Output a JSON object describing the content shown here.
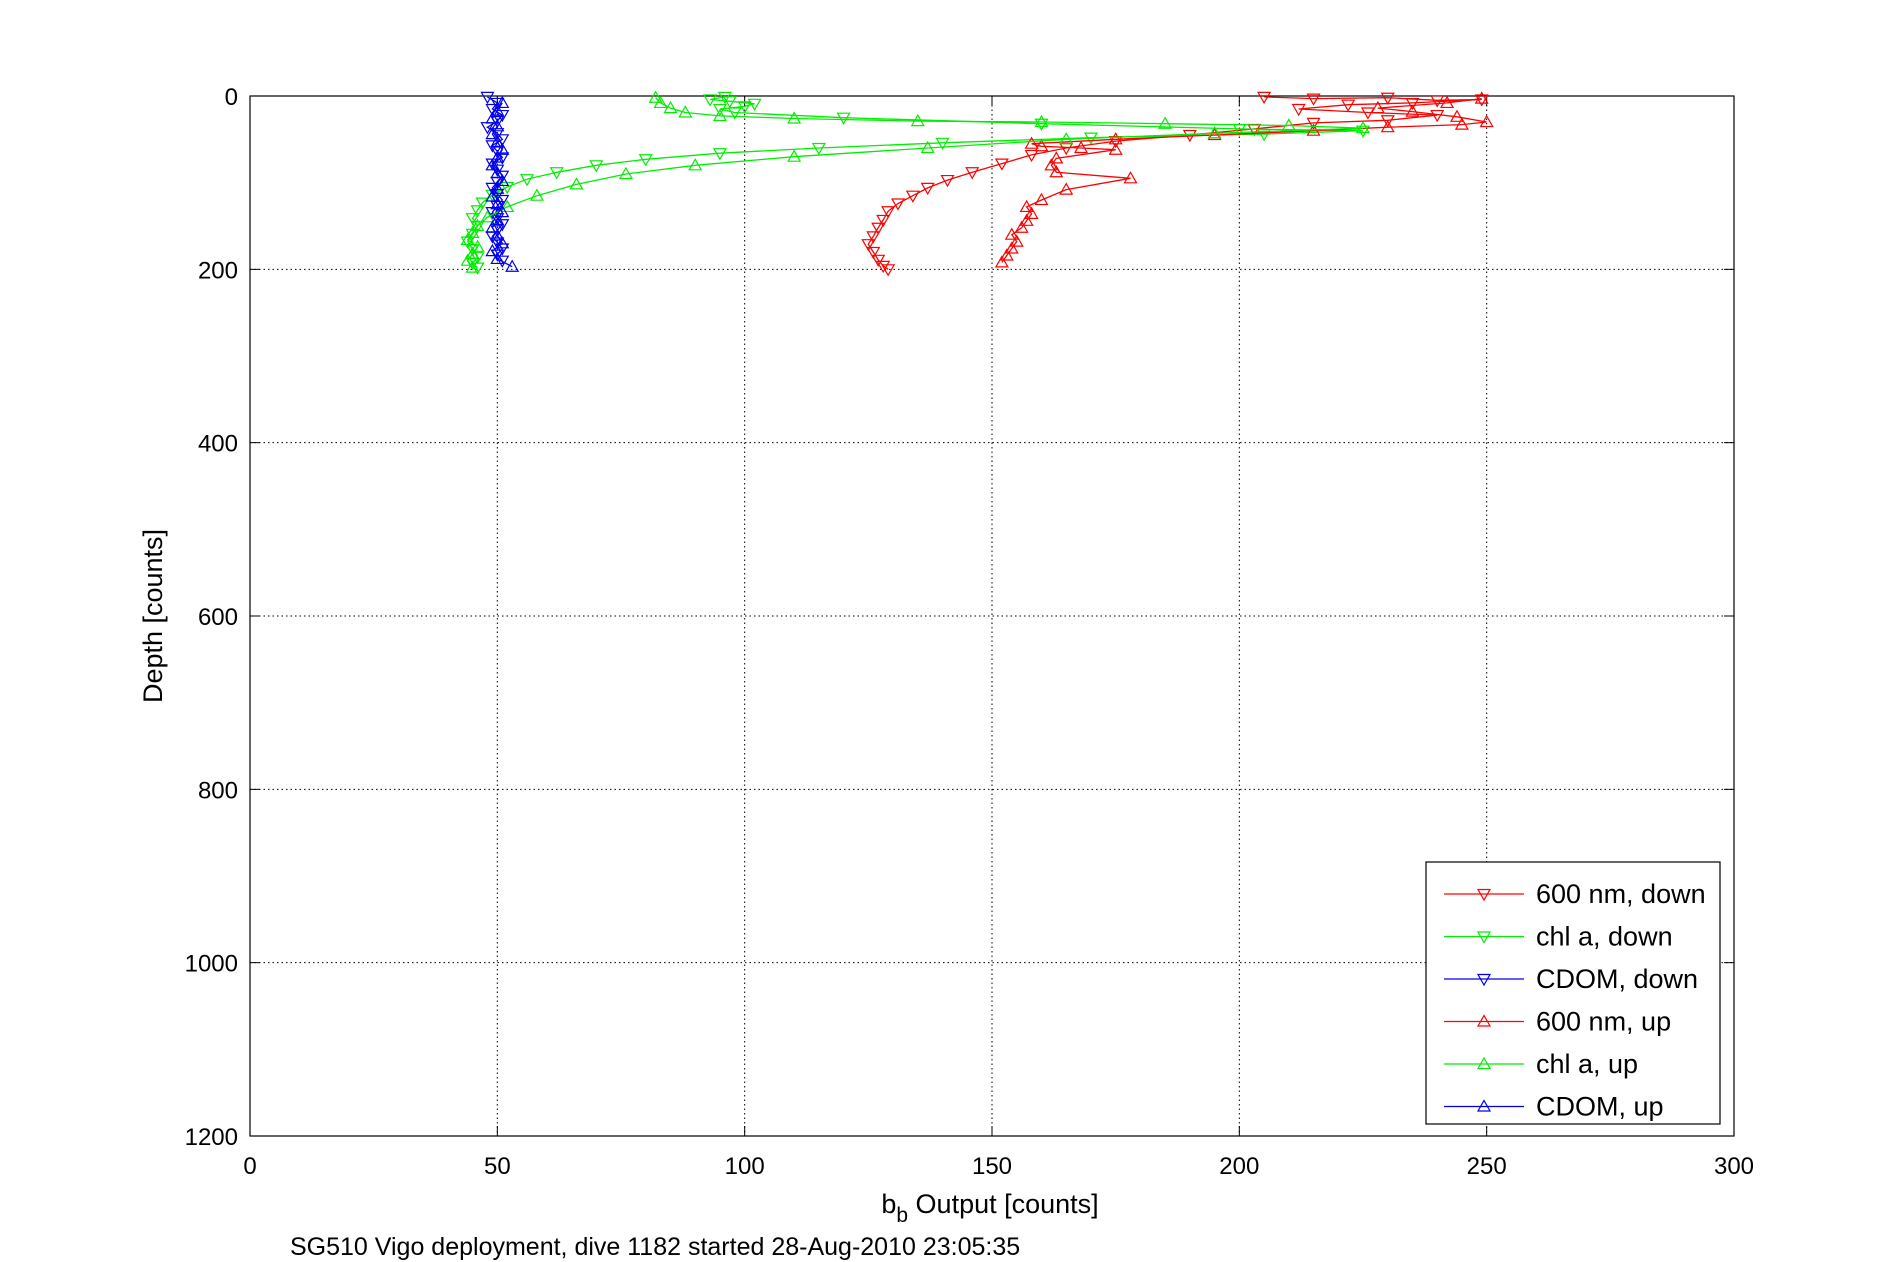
{
  "caption": "SG510 Vigo deployment, dive 1182 started 28-Aug-2010 23:05:35",
  "chart_data": {
    "type": "line",
    "xlabel_main": "b",
    "xlabel_sub": "b",
    "xlabel_rest": " Output [counts]",
    "ylabel": "Depth [counts]",
    "xlim": [
      0,
      300
    ],
    "ylim": [
      0,
      1200
    ],
    "y_reversed": true,
    "grid": true,
    "legend_position": "bottom-right",
    "x_ticks": [
      "0",
      "50",
      "100",
      "150",
      "200",
      "250",
      "300"
    ],
    "x_tick_values": [
      0,
      50,
      100,
      150,
      200,
      250,
      300
    ],
    "y_ticks": [
      "0",
      "200",
      "400",
      "600",
      "800",
      "1000",
      "1200"
    ],
    "y_tick_values": [
      0,
      200,
      400,
      600,
      800,
      1000,
      1200
    ],
    "series": [
      {
        "name": "600 nm, down",
        "color": "#ff0000",
        "marker": "triangle-down",
        "x": [
          205,
          215,
          230,
          240,
          249,
          235,
          222,
          212,
          226,
          240,
          230,
          215,
          203,
          190,
          175,
          165,
          158,
          152,
          146,
          141,
          137,
          134,
          131,
          129,
          128,
          127,
          126,
          125,
          126,
          127,
          128,
          129
        ],
        "y": [
          1,
          3,
          2,
          5,
          4,
          8,
          10,
          15,
          19,
          22,
          28,
          31,
          38,
          45,
          52,
          60,
          68,
          78,
          88,
          97,
          106,
          115,
          124,
          133,
          143,
          152,
          162,
          171,
          180,
          189,
          196,
          200
        ]
      },
      {
        "name": "chl a, down",
        "color": "#00ee00",
        "marker": "triangle-down",
        "x": [
          96,
          93,
          97,
          102,
          100,
          95,
          98,
          120,
          160,
          200,
          225,
          205,
          170,
          140,
          115,
          95,
          80,
          70,
          62,
          56,
          52,
          49,
          47,
          46,
          45,
          46,
          45,
          44,
          45,
          46,
          45,
          46
        ],
        "y": [
          1,
          4,
          6,
          9,
          12,
          15,
          19,
          25,
          32,
          38,
          40,
          44,
          48,
          54,
          60,
          66,
          73,
          80,
          88,
          96,
          105,
          114,
          123,
          132,
          141,
          150,
          159,
          168,
          177,
          186,
          193,
          198
        ]
      },
      {
        "name": "CDOM, down",
        "color": "#0000ee",
        "marker": "triangle-down",
        "x": [
          48,
          50,
          49,
          51,
          50,
          48,
          50,
          51,
          49,
          50,
          51,
          49,
          50,
          51,
          50,
          49,
          50,
          51,
          50,
          49,
          50,
          51,
          50,
          49,
          50,
          51,
          50,
          51
        ],
        "y": [
          1,
          8,
          15,
          22,
          29,
          36,
          43,
          50,
          57,
          64,
          71,
          78,
          85,
          92,
          99,
          106,
          113,
          120,
          127,
          134,
          141,
          148,
          155,
          162,
          169,
          176,
          183,
          190
        ]
      },
      {
        "name": "600 nm, up",
        "color": "#ff0000",
        "marker": "triangle-up",
        "x": [
          152,
          153,
          154,
          155,
          154,
          156,
          157,
          158,
          157,
          160,
          165,
          178,
          163,
          162,
          163,
          175,
          168,
          160,
          158,
          175,
          195,
          215,
          230,
          245,
          250,
          244,
          235,
          228,
          242,
          249
        ],
        "y": [
          192,
          184,
          176,
          168,
          160,
          152,
          144,
          136,
          128,
          120,
          108,
          95,
          88,
          80,
          72,
          62,
          60,
          58,
          55,
          50,
          45,
          40,
          36,
          33,
          30,
          24,
          18,
          14,
          8,
          3
        ]
      },
      {
        "name": "chl a, up",
        "color": "#00ee00",
        "marker": "triangle-up",
        "x": [
          45,
          44,
          45,
          46,
          44,
          45,
          46,
          48,
          52,
          58,
          66,
          76,
          90,
          110,
          137,
          165,
          195,
          225,
          210,
          185,
          160,
          135,
          110,
          95,
          88,
          85,
          83,
          82
        ],
        "y": [
          198,
          190,
          182,
          174,
          166,
          158,
          150,
          140,
          128,
          115,
          102,
          90,
          80,
          70,
          60,
          50,
          43,
          37,
          34,
          32,
          30,
          29,
          26,
          23,
          19,
          14,
          8,
          2
        ]
      },
      {
        "name": "CDOM, up",
        "color": "#0000ee",
        "marker": "triangle-up",
        "x": [
          53,
          50,
          49,
          51,
          50,
          49,
          50,
          51,
          50,
          49,
          50,
          51,
          50,
          49,
          50,
          51,
          50,
          49,
          50,
          49,
          50,
          51
        ],
        "y": [
          197,
          188,
          179,
          170,
          161,
          152,
          143,
          134,
          125,
          116,
          107,
          98,
          89,
          80,
          71,
          62,
          53,
          44,
          35,
          26,
          17,
          8
        ]
      }
    ]
  }
}
